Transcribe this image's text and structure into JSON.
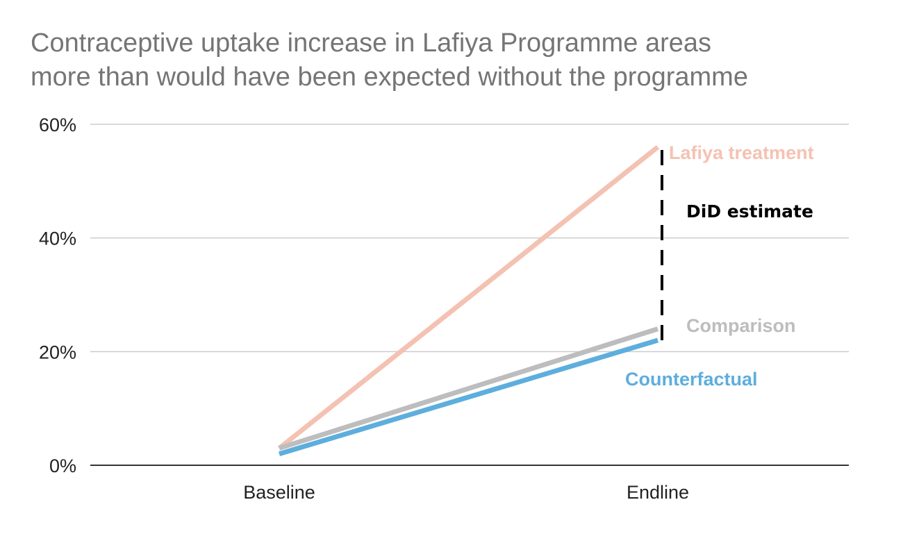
{
  "chart_data": {
    "type": "line",
    "title_lines": [
      "Contraceptive uptake increase in Lafiya Programme areas",
      "more than would have been expected without the programme"
    ],
    "categories": [
      "Baseline",
      "Endline"
    ],
    "y_ticks": [
      {
        "value": 0,
        "label": "0%"
      },
      {
        "value": 20,
        "label": "20%"
      },
      {
        "value": 40,
        "label": "40%"
      },
      {
        "value": 60,
        "label": "60%"
      }
    ],
    "ylim": [
      0,
      60
    ],
    "grid": true,
    "series": [
      {
        "name": "Lafiya treatment",
        "values": [
          3,
          56
        ],
        "color": "#F4C2B2"
      },
      {
        "name": "Comparison",
        "values": [
          3,
          24
        ],
        "color": "#BDBDBD"
      },
      {
        "name": "Counterfactual",
        "values": [
          2,
          22
        ],
        "color": "#5DAEDD"
      }
    ],
    "annotation": {
      "label": "DiD estimate",
      "category": "Endline",
      "from": 22,
      "to": 56,
      "color": "#000000"
    }
  }
}
